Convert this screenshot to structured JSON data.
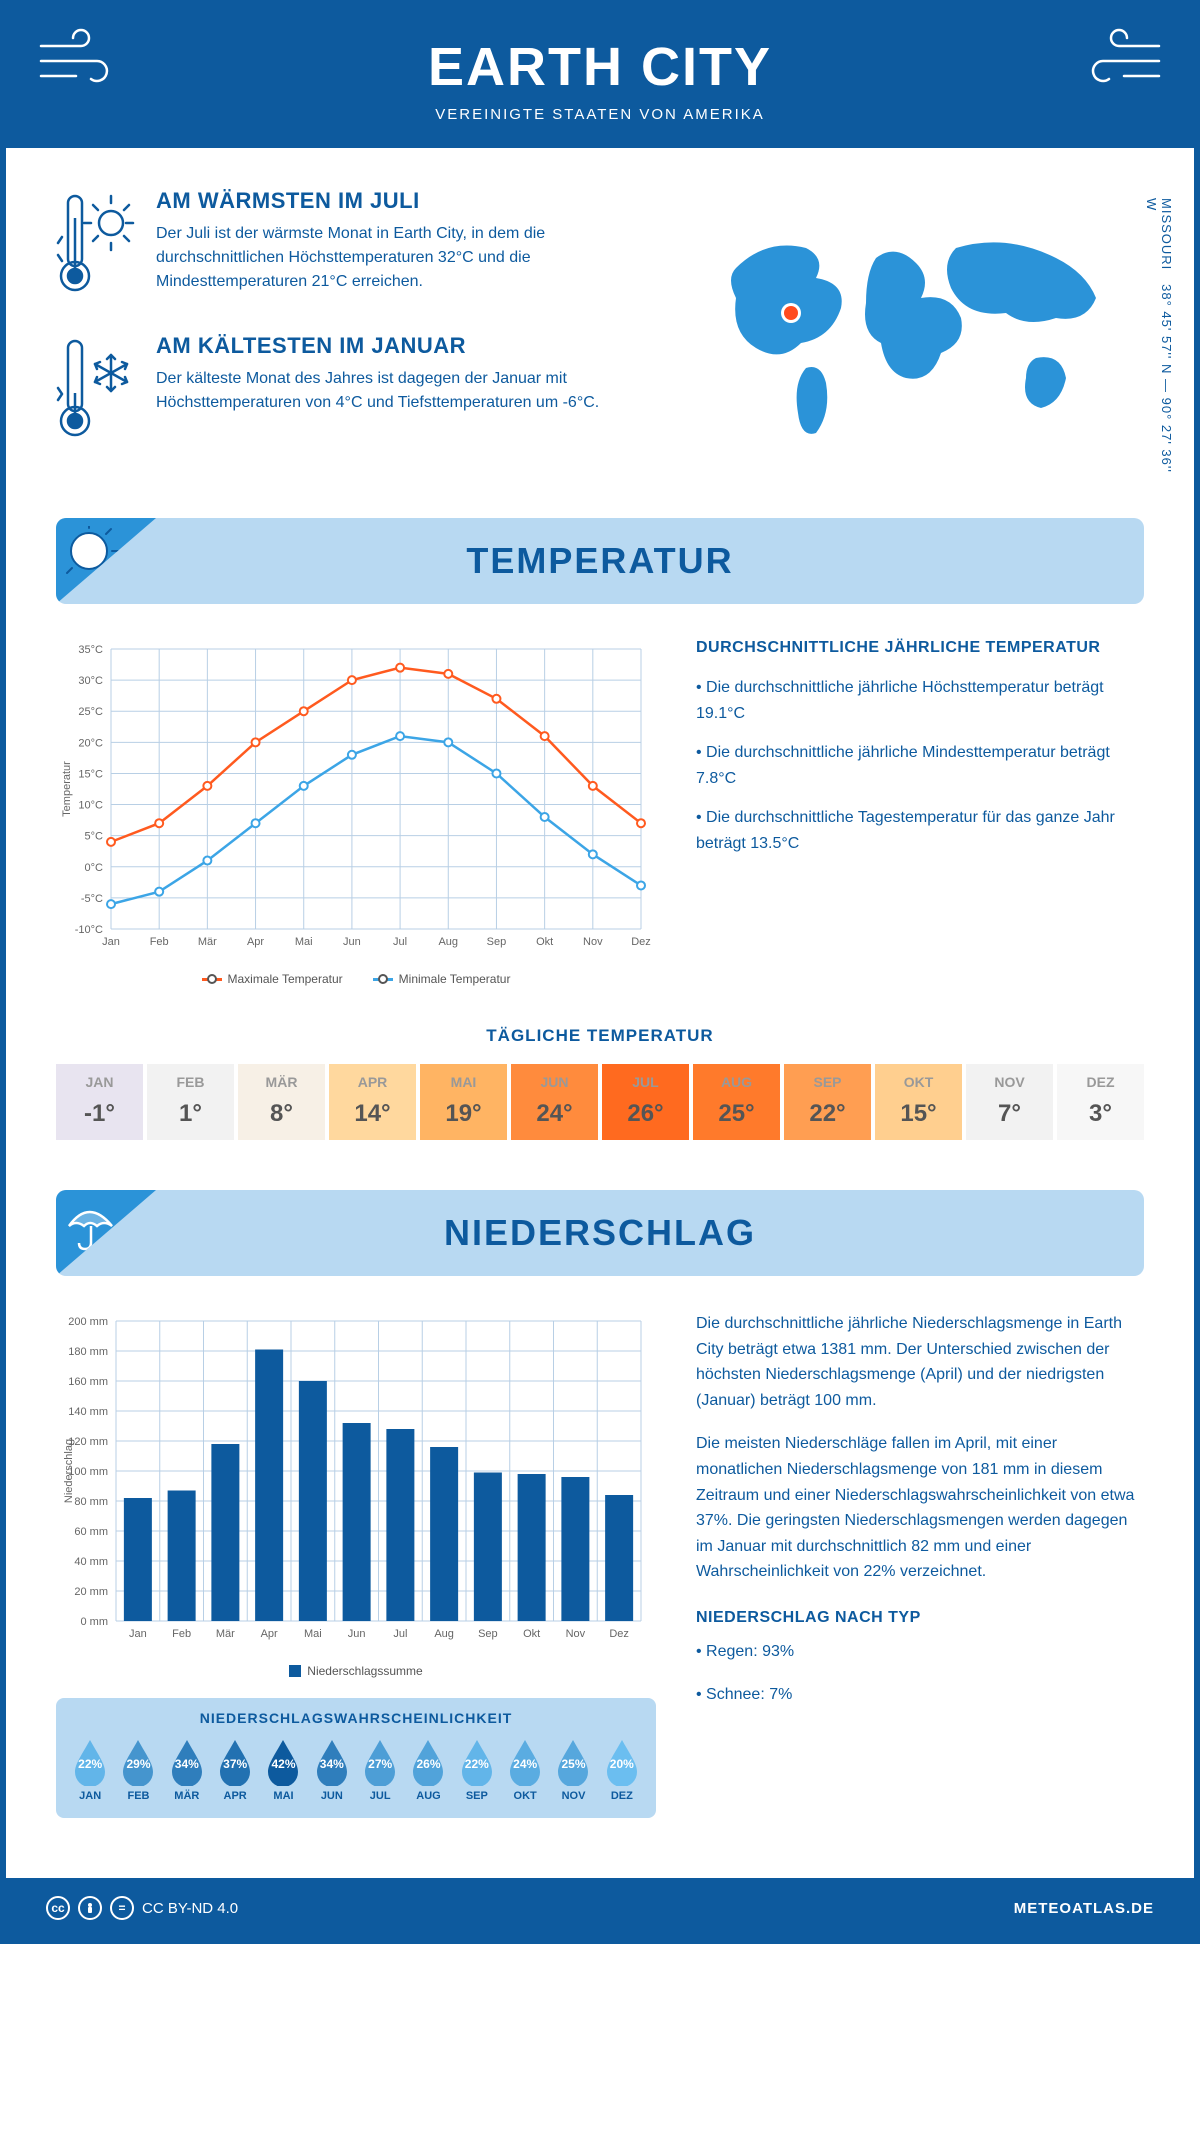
{
  "header": {
    "title": "EARTH CITY",
    "subtitle": "VEREINIGTE STAATEN VON AMERIKA"
  },
  "location": {
    "region": "MISSOURI",
    "coords": "38° 45' 57'' N — 90° 27' 36'' W",
    "marker_color": "#ff4b1f"
  },
  "facts": {
    "warm": {
      "title": "AM WÄRMSTEN IM JULI",
      "text": "Der Juli ist der wärmste Monat in Earth City, in dem die durchschnittlichen Höchsttemperaturen 32°C und die Mindesttemperaturen 21°C erreichen."
    },
    "cold": {
      "title": "AM KÄLTESTEN IM JANUAR",
      "text": "Der kälteste Monat des Jahres ist dagegen der Januar mit Höchsttemperaturen von 4°C und Tiefsttemperaturen um -6°C."
    }
  },
  "sections": {
    "temp": "TEMPERATUR",
    "precip": "NIEDERSCHLAG"
  },
  "temp_chart": {
    "type": "line",
    "months": [
      "Jan",
      "Feb",
      "Mär",
      "Apr",
      "Mai",
      "Jun",
      "Jul",
      "Aug",
      "Sep",
      "Okt",
      "Nov",
      "Dez"
    ],
    "ylabel": "Temperatur",
    "ylim": [
      -10,
      35
    ],
    "ytick_step": 5,
    "grid_color": "#b8cfe5",
    "series": [
      {
        "name": "Maximale Temperatur",
        "color": "#ff5a1f",
        "values": [
          4,
          7,
          13,
          20,
          25,
          30,
          32,
          31,
          27,
          21,
          13,
          7
        ]
      },
      {
        "name": "Minimale Temperatur",
        "color": "#3ca5e6",
        "values": [
          -6,
          -4,
          1,
          7,
          13,
          18,
          21,
          20,
          15,
          8,
          2,
          -3
        ]
      }
    ]
  },
  "temp_text": {
    "heading": "DURCHSCHNITTLICHE JÄHRLICHE TEMPERATUR",
    "lines": [
      "• Die durchschnittliche jährliche Höchsttemperatur beträgt 19.1°C",
      "• Die durchschnittliche jährliche Mindesttemperatur beträgt 7.8°C",
      "• Die durchschnittliche Tagestemperatur für das ganze Jahr beträgt 13.5°C"
    ]
  },
  "daily_temp": {
    "title": "TÄGLICHE TEMPERATUR",
    "months": [
      "JAN",
      "FEB",
      "MÄR",
      "APR",
      "MAI",
      "JUN",
      "JUL",
      "AUG",
      "SEP",
      "OKT",
      "NOV",
      "DEZ"
    ],
    "values": [
      "-1°",
      "1°",
      "8°",
      "14°",
      "19°",
      "24°",
      "26°",
      "25°",
      "22°",
      "15°",
      "7°",
      "3°"
    ],
    "colors": [
      "#e8e4f0",
      "#f2f2f2",
      "#f7f0e6",
      "#ffd89e",
      "#ffb463",
      "#ff8b3d",
      "#ff6a1f",
      "#ff7a2b",
      "#ff9e52",
      "#ffcf8f",
      "#f2f2f2",
      "#f7f7f7"
    ]
  },
  "precip_chart": {
    "type": "bar",
    "months": [
      "Jan",
      "Feb",
      "Mär",
      "Apr",
      "Mai",
      "Jun",
      "Jul",
      "Aug",
      "Sep",
      "Okt",
      "Nov",
      "Dez"
    ],
    "ylabel": "Niederschlag",
    "ylim": [
      0,
      200
    ],
    "ytick_step": 20,
    "grid_color": "#b8cfe5",
    "bar_color": "#0d5a9e",
    "legend": "Niederschlagssumme",
    "values": [
      82,
      87,
      118,
      181,
      160,
      132,
      128,
      116,
      99,
      98,
      96,
      84
    ]
  },
  "precip_text": {
    "p1": "Die durchschnittliche jährliche Niederschlagsmenge in Earth City beträgt etwa 1381 mm. Der Unterschied zwischen der höchsten Niederschlagsmenge (April) und der niedrigsten (Januar) beträgt 100 mm.",
    "p2": "Die meisten Niederschläge fallen im April, mit einer monatlichen Niederschlagsmenge von 181 mm in diesem Zeitraum und einer Niederschlagswahrscheinlichkeit von etwa 37%. Die geringsten Niederschlagsmengen werden dagegen im Januar mit durchschnittlich 82 mm und einer Wahrscheinlichkeit von 22% verzeichnet.",
    "type_heading": "NIEDERSCHLAG NACH TYP",
    "type_lines": [
      "• Regen: 93%",
      "• Schnee: 7%"
    ]
  },
  "precip_prob": {
    "title": "NIEDERSCHLAGSWAHRSCHEINLICHKEIT",
    "months": [
      "JAN",
      "FEB",
      "MÄR",
      "APR",
      "MAI",
      "JUN",
      "JUL",
      "AUG",
      "SEP",
      "OKT",
      "NOV",
      "DEZ"
    ],
    "values": [
      22,
      29,
      34,
      37,
      42,
      34,
      27,
      26,
      22,
      24,
      25,
      20
    ],
    "color_scale": {
      "low": "#6bbef0",
      "high": "#0d5a9e"
    }
  },
  "footer": {
    "license": "CC BY-ND 4.0",
    "site": "METEOATLAS.DE"
  },
  "colors": {
    "primary": "#0d5a9e",
    "light_blue": "#b8d9f2",
    "map_fill": "#2b93d8"
  }
}
